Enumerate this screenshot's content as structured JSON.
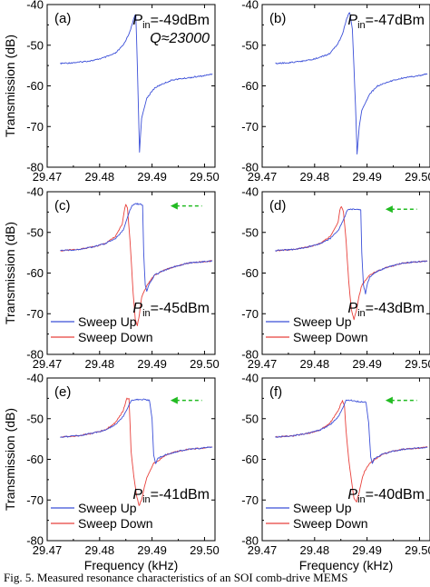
{
  "caption": "Fig. 5.   Measured resonance characteristics of an SOI comb-drive MEMS",
  "shared": {
    "ylabel": "Transmission  (dB)",
    "xlabel": "Frequency  (kHz)",
    "x_ticks": [
      "29.47",
      "29.48",
      "29.49",
      "29.50"
    ],
    "y_ticks": [
      "-40",
      "-50",
      "-60",
      "-70",
      "-80"
    ],
    "colors": {
      "sweep_up": "#3b4fd8",
      "sweep_down": "#e8413c",
      "arrow": "#22bb22"
    }
  },
  "chart_data": [
    {
      "type": "line",
      "panel": "(a)",
      "xlim": [
        29.47,
        29.502
      ],
      "ylim": [
        -80,
        -40
      ],
      "annotation": [
        "P",
        "in",
        "=-49dBm"
      ],
      "quality": "Q≈23000",
      "series": [
        {
          "color": "#3b4fd8",
          "x": [
            29.4725,
            29.476,
            29.479,
            29.481,
            29.483,
            29.4845,
            29.4855,
            29.4862,
            29.4866,
            29.4869,
            29.4872,
            29.4876,
            29.488,
            29.489,
            29.4905,
            29.492,
            29.494,
            29.497,
            29.5,
            29.5015
          ],
          "y": [
            -54.5,
            -54.2,
            -53.7,
            -53,
            -52,
            -50,
            -47.5,
            -45,
            -43,
            -42.5,
            -55,
            -76.3,
            -68,
            -63,
            -60.5,
            -59.5,
            -58.5,
            -58,
            -57.5,
            -57
          ]
        }
      ]
    },
    {
      "type": "line",
      "panel": "(b)",
      "xlim": [
        29.47,
        29.502
      ],
      "ylim": [
        -80,
        -40
      ],
      "annotation": [
        "P",
        "in",
        "=-47dBm"
      ],
      "series": [
        {
          "color": "#3b4fd8",
          "x": [
            29.4725,
            29.476,
            29.479,
            29.481,
            29.483,
            29.4845,
            29.4855,
            29.486,
            29.4864,
            29.4867,
            29.4872,
            29.4878,
            29.4881,
            29.4885,
            29.489,
            29.4905,
            29.492,
            29.494,
            29.497,
            29.5,
            29.5015
          ],
          "y": [
            -54.5,
            -54.2,
            -53.7,
            -53,
            -52,
            -49.5,
            -46.5,
            -44,
            -42.5,
            -42,
            -46,
            -65,
            -76.8,
            -70,
            -66,
            -62,
            -60,
            -59,
            -58,
            -57.5,
            -57
          ]
        }
      ]
    },
    {
      "type": "line",
      "panel": "(c)",
      "xlim": [
        29.47,
        29.502
      ],
      "ylim": [
        -80,
        -40
      ],
      "annotation": [
        "P",
        "in",
        "=-45dBm"
      ],
      "legend": [
        "Sweep Up",
        "Sweep Down"
      ],
      "series": [
        {
          "name": "Sweep Up",
          "color": "#3b4fd8",
          "x": [
            29.4725,
            29.476,
            29.479,
            29.481,
            29.483,
            29.4845,
            29.4855,
            29.4862,
            29.487,
            29.4878,
            29.4882,
            29.4884,
            29.4887,
            29.489,
            29.4895,
            29.4905,
            29.492,
            29.494,
            29.497,
            29.5,
            29.5015
          ],
          "y": [
            -54.5,
            -54.2,
            -53.5,
            -52.8,
            -51.5,
            -49.5,
            -45.5,
            -43.2,
            -43,
            -43,
            -43.3,
            -55,
            -63,
            -64.5,
            -62.5,
            -60.5,
            -59.5,
            -58.5,
            -57.5,
            -57.2,
            -57
          ]
        },
        {
          "name": "Sweep Down",
          "color": "#e8413c",
          "x": [
            29.4725,
            29.476,
            29.479,
            29.481,
            29.483,
            29.4843,
            29.4848,
            29.485,
            29.4853,
            29.4858,
            29.4864,
            29.4868,
            29.4872,
            29.4876,
            29.488,
            29.489,
            29.4905,
            29.492,
            29.494,
            29.497,
            29.5,
            29.5015
          ],
          "y": [
            -54.5,
            -54.2,
            -53.5,
            -52.8,
            -51,
            -48,
            -44,
            -43,
            -44,
            -52,
            -65,
            -71.5,
            -73,
            -70,
            -66,
            -63,
            -60.5,
            -59.5,
            -58.5,
            -57.5,
            -57.2,
            -57
          ]
        }
      ]
    },
    {
      "type": "line",
      "panel": "(d)",
      "xlim": [
        29.47,
        29.502
      ],
      "ylim": [
        -80,
        -40
      ],
      "annotation": [
        "P",
        "in",
        "=-43dBm"
      ],
      "legend": [
        "Sweep Up",
        "Sweep Down"
      ],
      "series": [
        {
          "name": "Sweep Up",
          "color": "#3b4fd8",
          "x": [
            29.4725,
            29.476,
            29.479,
            29.481,
            29.483,
            29.4845,
            29.4855,
            29.4862,
            29.487,
            29.488,
            29.4888,
            29.489,
            29.4893,
            29.4897,
            29.49,
            29.4905,
            29.492,
            29.494,
            29.497,
            29.5,
            29.5015
          ],
          "y": [
            -54.5,
            -54.2,
            -53.5,
            -52.8,
            -51.5,
            -49.5,
            -47,
            -44.5,
            -44.3,
            -44.3,
            -44.5,
            -55,
            -63,
            -65,
            -63,
            -61,
            -59.5,
            -58.5,
            -57.5,
            -57.2,
            -57
          ]
        },
        {
          "name": "Sweep Down",
          "color": "#e8413c",
          "x": [
            29.4725,
            29.476,
            29.479,
            29.481,
            29.483,
            29.4845,
            29.4848,
            29.4851,
            29.4855,
            29.486,
            29.4865,
            29.487,
            29.4875,
            29.488,
            29.4885,
            29.489,
            29.4905,
            29.492,
            29.494,
            29.497,
            29.5,
            29.5015
          ],
          "y": [
            -54.5,
            -54.2,
            -53.5,
            -52.8,
            -51,
            -47.5,
            -44.5,
            -43.5,
            -45,
            -52,
            -62,
            -69,
            -71.5,
            -69,
            -65.5,
            -63,
            -60.5,
            -59.5,
            -58.5,
            -57.5,
            -57.2,
            -57
          ]
        }
      ]
    },
    {
      "type": "line",
      "panel": "(e)",
      "xlim": [
        29.47,
        29.502
      ],
      "ylim": [
        -80,
        -40
      ],
      "annotation": [
        "P",
        "in",
        "=-41dBm"
      ],
      "legend": [
        "Sweep Up",
        "Sweep Down"
      ],
      "series": [
        {
          "name": "Sweep Up",
          "color": "#3b4fd8",
          "x": [
            29.4725,
            29.476,
            29.479,
            29.481,
            29.483,
            29.4845,
            29.4855,
            29.486,
            29.487,
            29.4885,
            29.4895,
            29.49,
            29.4903,
            29.4907,
            29.491,
            29.4915,
            29.493,
            29.495,
            29.497,
            29.5,
            29.5015
          ],
          "y": [
            -54.5,
            -54.2,
            -53.5,
            -52.8,
            -51.5,
            -49.5,
            -47,
            -45.5,
            -45.3,
            -45.3,
            -45.5,
            -50,
            -59,
            -61,
            -60,
            -59.5,
            -58.7,
            -58,
            -57.5,
            -57.2,
            -57
          ]
        },
        {
          "name": "Sweep Down",
          "color": "#e8413c",
          "x": [
            29.4725,
            29.476,
            29.479,
            29.481,
            29.483,
            29.4845,
            29.4852,
            29.4856,
            29.4858,
            29.486,
            29.4865,
            29.487,
            29.4875,
            29.488,
            29.4885,
            29.489,
            29.4903,
            29.4915,
            29.493,
            29.495,
            29.497,
            29.5,
            29.5015
          ],
          "y": [
            -54.5,
            -54.2,
            -53.5,
            -52.8,
            -51,
            -48,
            -45,
            -45,
            -51,
            -58,
            -64,
            -68.5,
            -71.5,
            -70,
            -67,
            -64.5,
            -61,
            -60,
            -58.7,
            -58,
            -57.5,
            -57.2,
            -57
          ]
        }
      ]
    },
    {
      "type": "line",
      "panel": "(f)",
      "xlim": [
        29.47,
        29.502
      ],
      "ylim": [
        -80,
        -40
      ],
      "annotation": [
        "P",
        "in",
        "=-40dBm"
      ],
      "legend": [
        "Sweep Up",
        "Sweep Down"
      ],
      "series": [
        {
          "name": "Sweep Up",
          "color": "#3b4fd8",
          "x": [
            29.4725,
            29.476,
            29.479,
            29.481,
            29.483,
            29.4845,
            29.4855,
            29.486,
            29.487,
            29.4885,
            29.4898,
            29.4903,
            29.4907,
            29.491,
            29.4913,
            29.4918,
            29.493,
            29.495,
            29.497,
            29.5,
            29.5015
          ],
          "y": [
            -54.5,
            -54.2,
            -53.5,
            -52.8,
            -51.5,
            -49.5,
            -47,
            -45.5,
            -45.5,
            -45.8,
            -46,
            -51,
            -59.5,
            -61,
            -60,
            -59.5,
            -58.7,
            -58,
            -57.5,
            -57.2,
            -57
          ]
        },
        {
          "name": "Sweep Down",
          "color": "#e8413c",
          "x": [
            29.4725,
            29.476,
            29.479,
            29.481,
            29.483,
            29.4845,
            29.4853,
            29.4857,
            29.486,
            29.4865,
            29.487,
            29.4875,
            29.488,
            29.4885,
            29.489,
            29.4895,
            29.4905,
            29.4915,
            29.493,
            29.495,
            29.497,
            29.5,
            29.5015
          ],
          "y": [
            -54.5,
            -54.2,
            -53.5,
            -52.8,
            -51,
            -48,
            -45.5,
            -47,
            -53,
            -60,
            -65,
            -69.5,
            -70.5,
            -68,
            -65,
            -63,
            -61,
            -60,
            -58.7,
            -58,
            -57.5,
            -57.2,
            -57
          ]
        }
      ]
    }
  ]
}
